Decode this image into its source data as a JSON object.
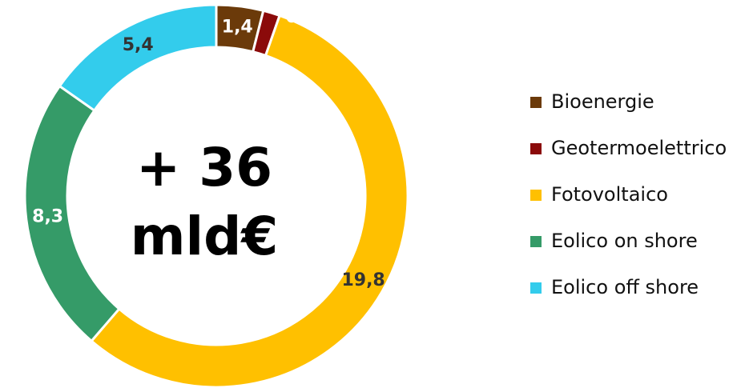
{
  "chart_data": {
    "type": "donut",
    "categories": [
      "Bioenergie",
      "Geotermoelettrico",
      "Fotovoltaico",
      "Eolico on shore",
      "Eolico off shore"
    ],
    "values": [
      1.4,
      0.5,
      19.8,
      8.3,
      5.4
    ],
    "value_labels": [
      "1,4",
      "0,5",
      "19,8",
      "8,3",
      "5,4"
    ],
    "colors": [
      "#6b3a0a",
      "#8b0a0a",
      "#ffc000",
      "#359b68",
      "#33ccec"
    ],
    "center_label": [
      "+ 36",
      "mld€"
    ],
    "legend": "right"
  }
}
